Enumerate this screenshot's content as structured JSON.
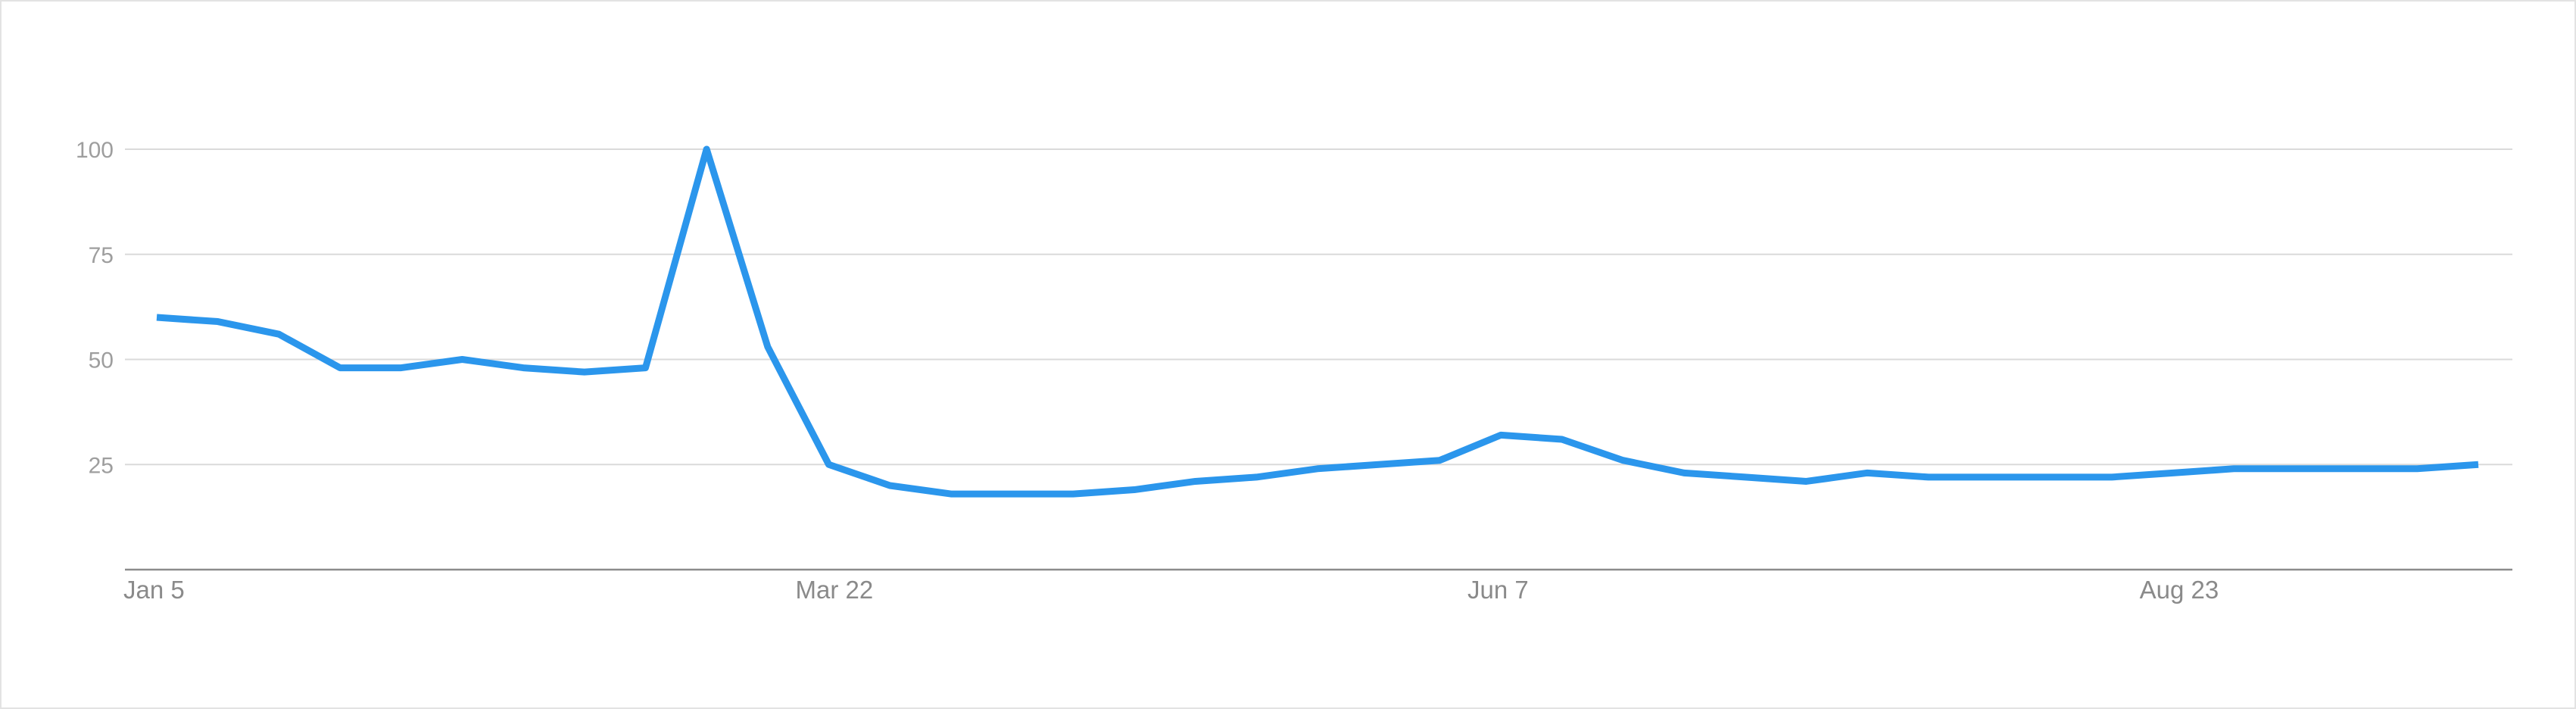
{
  "chart_data": {
    "type": "line",
    "title": "",
    "xlabel": "",
    "ylabel": "",
    "x_tick_labels": [
      "Jan 5",
      "Mar 22",
      "Jun 7",
      "Aug 23"
    ],
    "y_ticks": [
      25,
      50,
      75,
      100
    ],
    "ylim": [
      0,
      100
    ],
    "grid": true,
    "series": [
      {
        "color": "#2b96ec",
        "x": [
          "Jan 5",
          "Jan 12",
          "Jan 19",
          "Jan 26",
          "Feb 2",
          "Feb 9",
          "Feb 16",
          "Feb 23",
          "Mar 1",
          "Mar 8",
          "Mar 15",
          "Mar 22",
          "Mar 29",
          "Apr 5",
          "Apr 12",
          "Apr 19",
          "Apr 26",
          "May 3",
          "May 10",
          "May 17",
          "May 24",
          "May 31",
          "Jun 7",
          "Jun 14",
          "Jun 21",
          "Jun 28",
          "Jul 5",
          "Jul 12",
          "Jul 19",
          "Jul 26",
          "Aug 2",
          "Aug 9",
          "Aug 16",
          "Aug 23",
          "Aug 30",
          "Sep 6",
          "Sep 13",
          "Sep 20",
          "Sep 27"
        ],
        "values": [
          60,
          59,
          56,
          48,
          48,
          50,
          48,
          47,
          48,
          100,
          53,
          25,
          20,
          18,
          18,
          18,
          19,
          21,
          22,
          24,
          25,
          26,
          32,
          31,
          26,
          23,
          22,
          21,
          23,
          22,
          22,
          22,
          22,
          23,
          24,
          24,
          24,
          24,
          25
        ]
      }
    ]
  }
}
